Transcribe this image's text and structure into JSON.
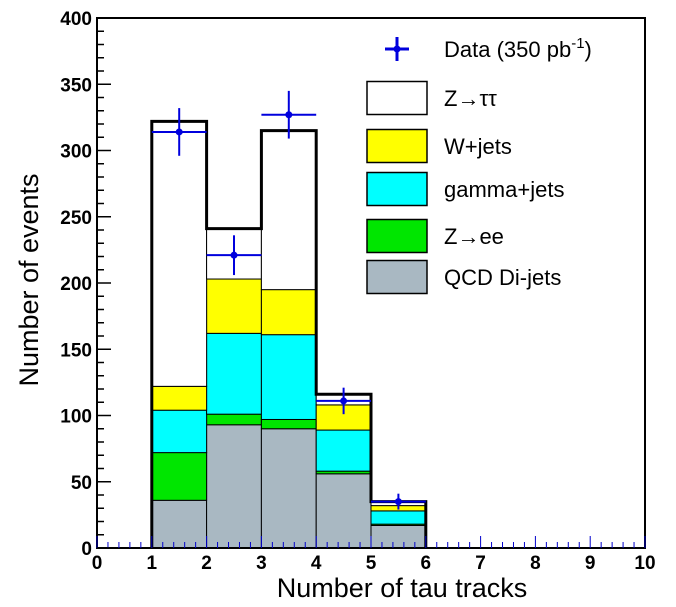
{
  "chart_data": {
    "type": "bar",
    "stacked": true,
    "xlabel": "Number of tau tracks",
    "ylabel": "Number of events",
    "xlim": [
      0,
      10
    ],
    "ylim": [
      0,
      400
    ],
    "x_ticks": [
      "0",
      "1",
      "2",
      "3",
      "4",
      "5",
      "6",
      "7",
      "8",
      "9",
      "10"
    ],
    "y_ticks": [
      "0",
      "50",
      "100",
      "150",
      "200",
      "250",
      "300",
      "350",
      "400"
    ],
    "bin_edges": [
      1,
      2,
      3,
      4,
      5,
      6
    ],
    "series": [
      {
        "name": "QCD Di-jets",
        "color": "#a9b8c2",
        "values": [
          36,
          93,
          90,
          56,
          17
        ]
      },
      {
        "name": "Z→ee",
        "color": "#00e600",
        "values": [
          36,
          8,
          7,
          2,
          1
        ]
      },
      {
        "name": "gamma+jets",
        "color": "#00ffff",
        "values": [
          32,
          61,
          64,
          31,
          10
        ]
      },
      {
        "name": "W+jets",
        "color": "#ffff00",
        "values": [
          18,
          41,
          34,
          19,
          4
        ]
      },
      {
        "name": "Z→ττ",
        "color": "#ffffff",
        "values": [
          200,
          38,
          120,
          8,
          3
        ]
      }
    ],
    "data_points": {
      "name": "Data (350 pb",
      "name_superscript": "-1",
      "name_suffix": ")",
      "color": "#0000dd",
      "x": [
        1.5,
        2.5,
        3.5,
        4.5,
        5.5
      ],
      "y": [
        314,
        221,
        327,
        111,
        35
      ],
      "yerr": [
        18,
        15,
        18,
        10,
        6
      ]
    },
    "legend": {
      "placement": "top-right",
      "entries": [
        "Data (350 pb-1)",
        "Z→ττ",
        "W+jets",
        "gamma+jets",
        "Z→ee",
        "QCD Di-jets"
      ]
    }
  }
}
